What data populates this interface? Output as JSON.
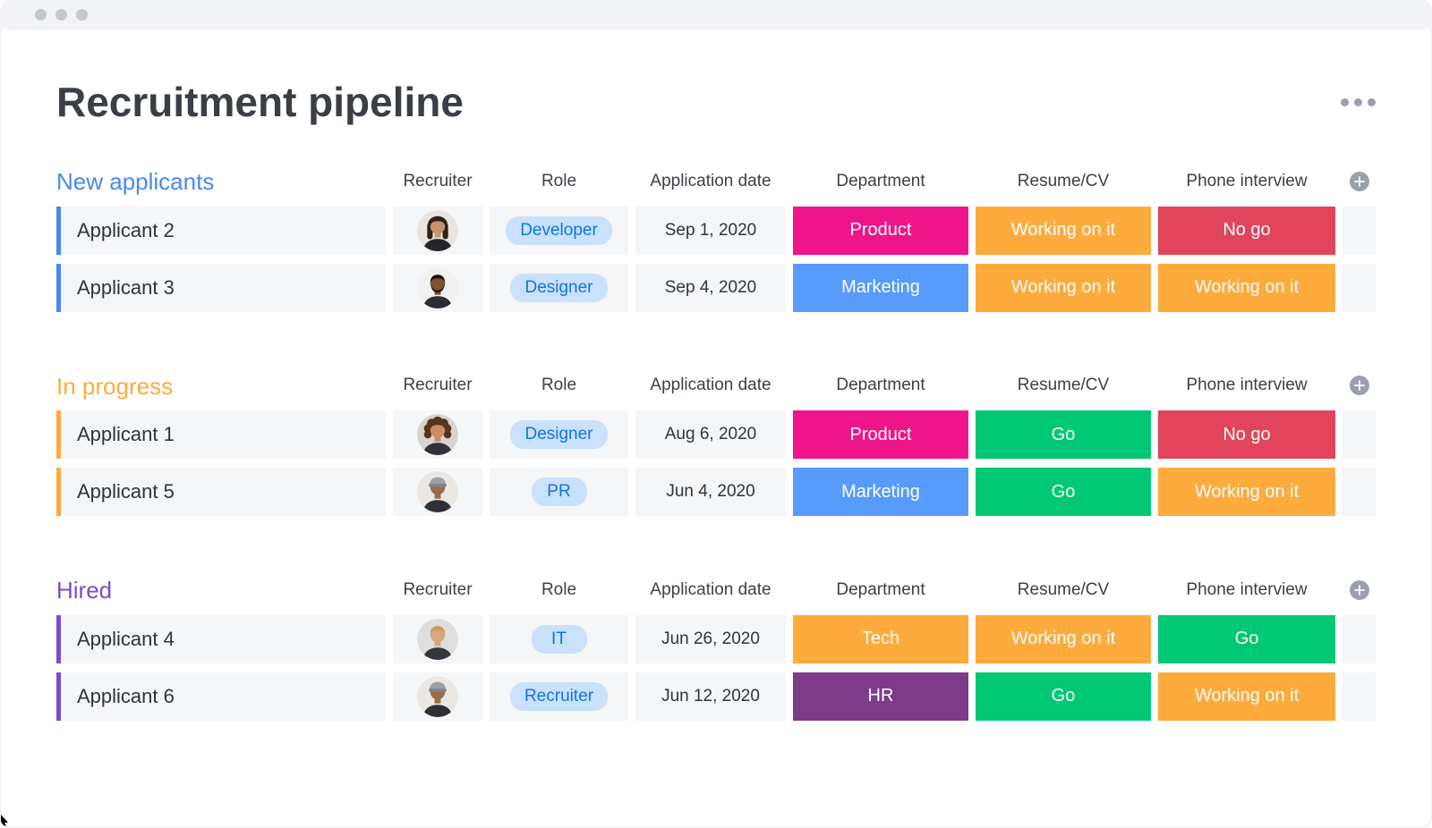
{
  "page": {
    "title": "Recruitment pipeline"
  },
  "columns": [
    "Recruiter",
    "Role",
    "Application date",
    "Department",
    "Resume/CV",
    "Phone interview"
  ],
  "add_column_label": "+",
  "role_badge": {
    "bg": "#c9e1fb",
    "text": "#1273ea"
  },
  "status_colors": {
    "Product": "#f0148a",
    "Marketing": "#579bfc",
    "Tech": "#fdab3d",
    "HR": "#7e3b8a",
    "Go": "#00c875",
    "No go": "#e2445c",
    "Working on it": "#fdab3d"
  },
  "avatars": {
    "woman-dark-straight-hair": {
      "type": "long",
      "bg": "#e8e5e1",
      "hair": "#2e2219",
      "skin": "#c79470",
      "shirt": "#23252b"
    },
    "man-short-hair-beard": {
      "type": "beard",
      "bg": "#f1f1ef",
      "hair": "#1b1510",
      "skin": "#80502f",
      "shirt": "#2b2d33"
    },
    "woman-curly-hair": {
      "type": "curly",
      "bg": "#d8d3cf",
      "hair": "#56341f",
      "skin": "#c98f62",
      "shirt": "#303238"
    },
    "man-backwards-cap": {
      "type": "cap",
      "bg": "#ebe8e4",
      "cap": "#9aa2a8",
      "capband": "#7e868d",
      "skin": "#9c6b45",
      "shirt": "#2e3036"
    },
    "man-blond-hair": {
      "type": "short",
      "bg": "#dedede",
      "hair": "#c39b5e",
      "skin": "#d8a57c",
      "shirt": "#33363c"
    }
  },
  "groups": [
    {
      "title": "New applicants",
      "color": "#4c87f0",
      "rows": [
        {
          "name": "Applicant 2",
          "recruiter_avatar": "woman-dark-straight-hair",
          "role": "Developer",
          "application_date": "Sep 1, 2020",
          "department": "Product",
          "resume_cv": "Working on it",
          "phone_interview": "No go"
        },
        {
          "name": "Applicant 3",
          "recruiter_avatar": "man-short-hair-beard",
          "role": "Designer",
          "application_date": "Sep 4, 2020",
          "department": "Marketing",
          "resume_cv": "Working on it",
          "phone_interview": "Working on it"
        }
      ]
    },
    {
      "title": "In progress",
      "color": "#fdab3d",
      "rows": [
        {
          "name": "Applicant 1",
          "recruiter_avatar": "woman-curly-hair",
          "role": "Designer",
          "application_date": "Aug 6, 2020",
          "department": "Product",
          "resume_cv": "Go",
          "phone_interview": "No go"
        },
        {
          "name": "Applicant 5",
          "recruiter_avatar": "man-backwards-cap",
          "role": "PR",
          "application_date": "Jun 4, 2020",
          "department": "Marketing",
          "resume_cv": "Go",
          "phone_interview": "Working on it"
        }
      ]
    },
    {
      "title": "Hired",
      "color": "#784bd1",
      "rows": [
        {
          "name": "Applicant 4",
          "recruiter_avatar": "man-blond-hair",
          "role": "IT",
          "application_date": "Jun 26, 2020",
          "department": "Tech",
          "resume_cv": "Working on it",
          "phone_interview": "Go"
        },
        {
          "name": "Applicant 6",
          "recruiter_avatar": "man-backwards-cap",
          "role": "Recruiter",
          "application_date": "Jun 12, 2020",
          "department": "HR",
          "resume_cv": "Go",
          "phone_interview": "Working on it"
        }
      ]
    }
  ]
}
